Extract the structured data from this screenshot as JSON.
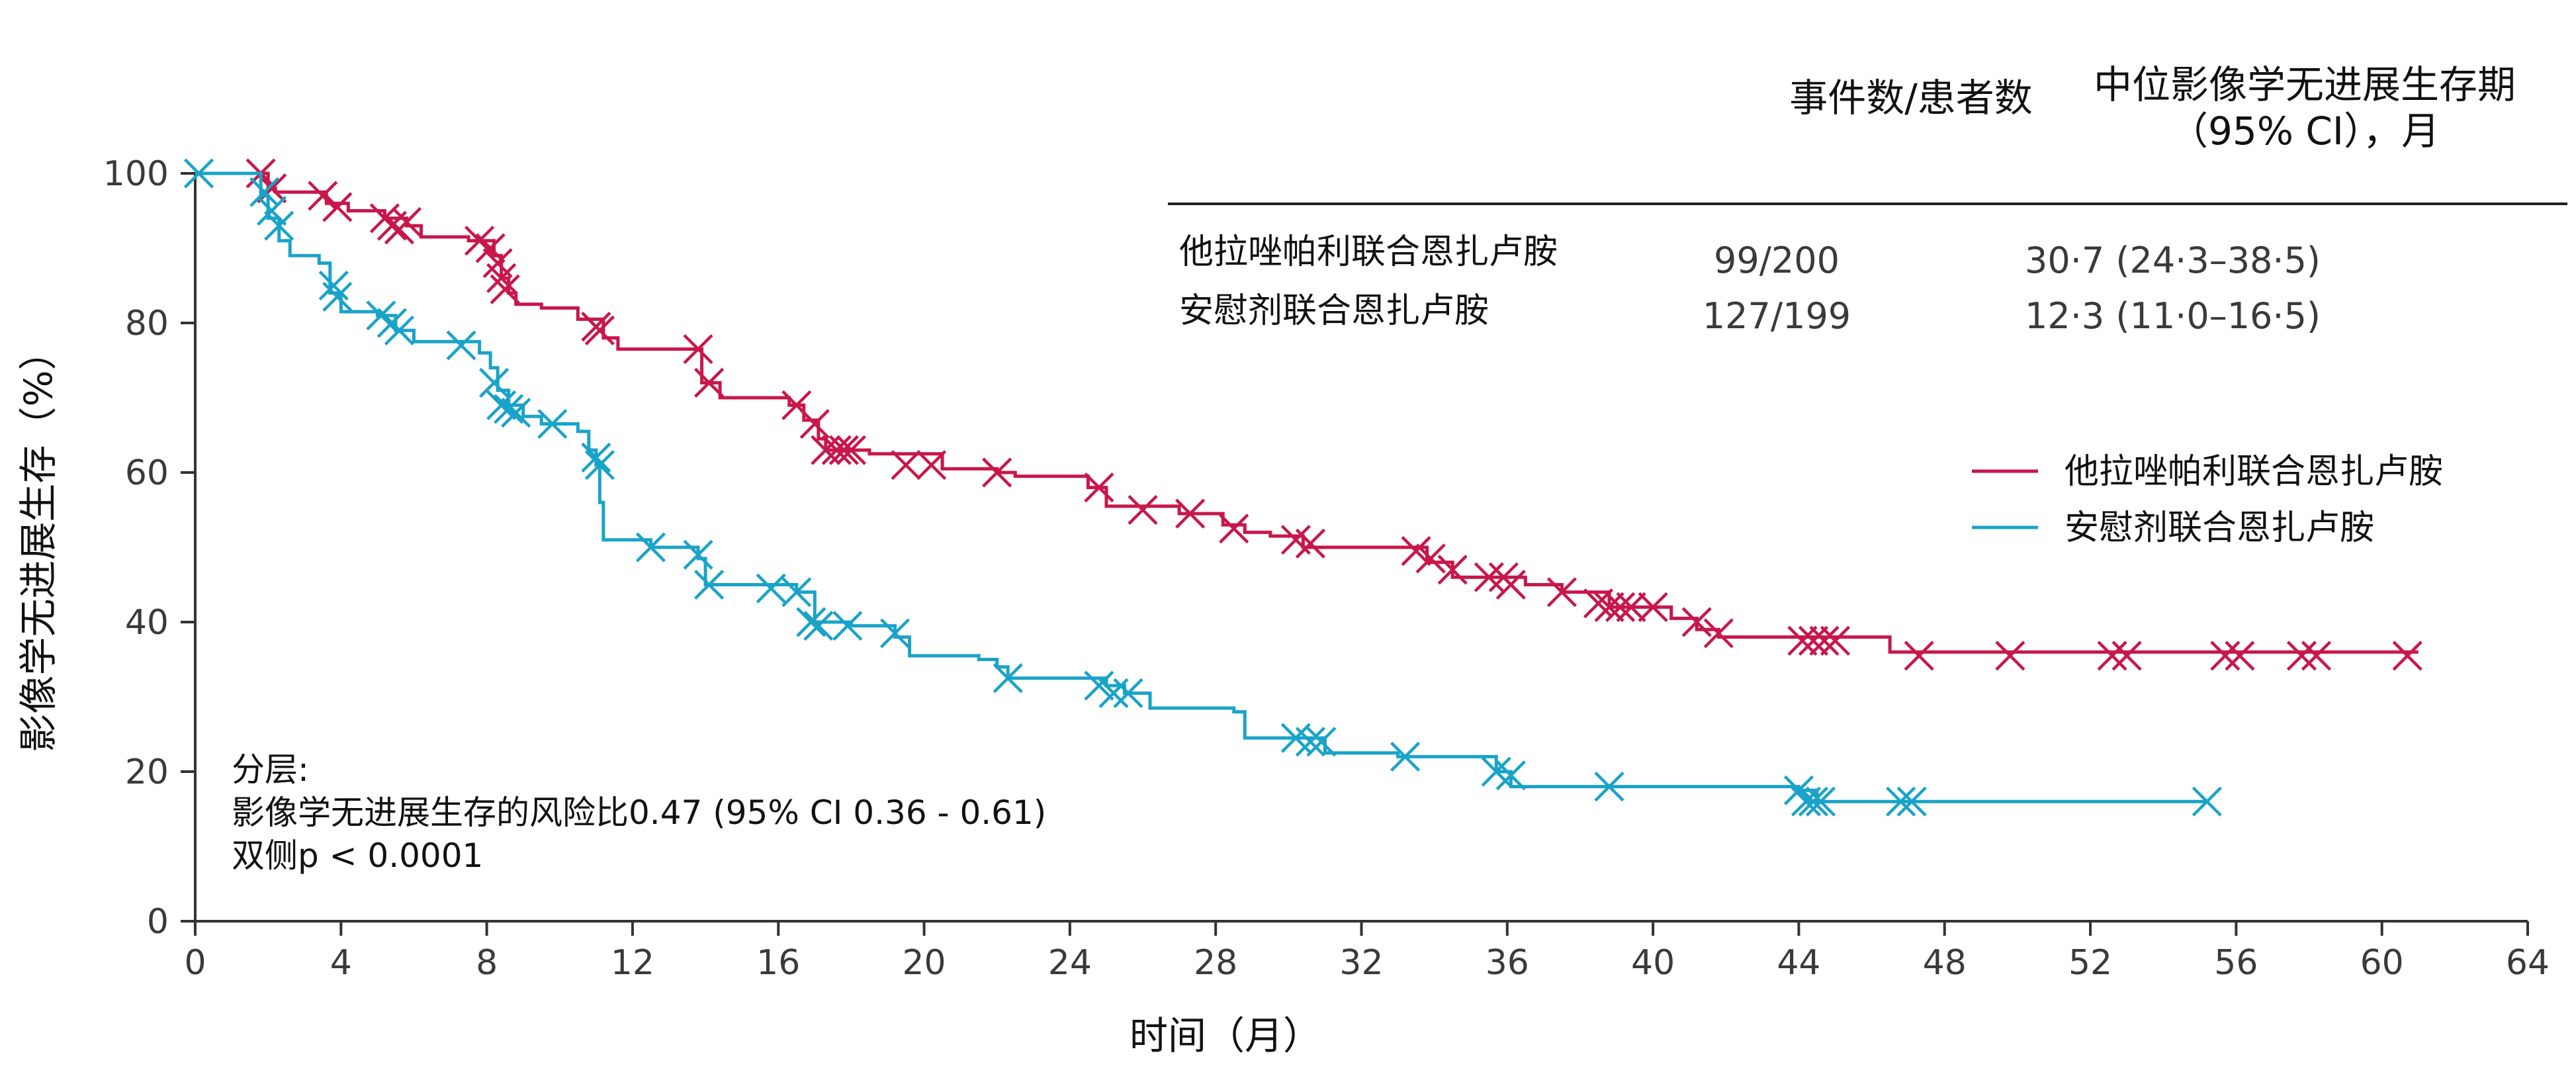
{
  "chart_data": {
    "type": "line",
    "subtype": "kaplan-meier step curves with censor marks",
    "xlabel": "时间（月）",
    "ylabel": "影像学无进展生存（%）",
    "xlim": [
      0,
      64
    ],
    "ylim": [
      0,
      100
    ],
    "x_ticks": [
      "0",
      "4",
      "8",
      "12",
      "16",
      "20",
      "24",
      "28",
      "32",
      "36",
      "40",
      "44",
      "48",
      "52",
      "56",
      "60",
      "64"
    ],
    "y_ticks": [
      "0",
      "20",
      "40",
      "60",
      "80",
      "100"
    ],
    "grid": false,
    "legend_position": "right",
    "table": {
      "header_col1": "事件数/患者数",
      "header_col2_line1": "中位影像学无进展生存期",
      "header_col2_line2": "（95% CI），月",
      "rows": [
        {
          "name": "他拉唑帕利联合恩扎卢胺",
          "events": "99/200",
          "median": "30·7 (24·3–38·5)"
        },
        {
          "name": "安慰剂联合恩扎卢胺",
          "events": "127/199",
          "median": "12·3 (11·0–16·5)"
        }
      ]
    },
    "annotation": {
      "line1": "分层:",
      "line2": "影像学无进展生存的风险比0.47   (95% CI 0.36 - 0.61)",
      "line3": "双侧p < 0.0001"
    },
    "series": [
      {
        "name": "他拉唑帕利联合恩扎卢胺",
        "color": "#c8174a",
        "steps": [
          [
            0,
            100
          ],
          [
            1.6,
            100
          ],
          [
            2,
            98
          ],
          [
            2.2,
            97.5
          ],
          [
            3.6,
            96
          ],
          [
            4.2,
            95
          ],
          [
            5.2,
            94
          ],
          [
            5.8,
            93
          ],
          [
            6.2,
            91.5
          ],
          [
            7.5,
            91
          ],
          [
            8.2,
            89
          ],
          [
            8.4,
            86
          ],
          [
            8.6,
            84
          ],
          [
            8.8,
            82.5
          ],
          [
            9.5,
            82
          ],
          [
            10.5,
            80.5
          ],
          [
            11.2,
            78
          ],
          [
            11.6,
            76.5
          ],
          [
            13.5,
            76.5
          ],
          [
            13.9,
            72
          ],
          [
            14.4,
            70
          ],
          [
            16.3,
            69
          ],
          [
            16.7,
            67
          ],
          [
            17.1,
            64.5
          ],
          [
            17.3,
            63
          ],
          [
            18.5,
            62.5
          ],
          [
            20.5,
            60.5
          ],
          [
            22,
            60
          ],
          [
            22.5,
            59.5
          ],
          [
            24.5,
            58
          ],
          [
            25,
            55.5
          ],
          [
            27,
            54.5
          ],
          [
            28.2,
            53
          ],
          [
            28.8,
            52
          ],
          [
            29.5,
            51.5
          ],
          [
            30.4,
            50
          ],
          [
            33.8,
            48
          ],
          [
            34.5,
            46
          ],
          [
            35.5,
            46
          ],
          [
            36.5,
            45
          ],
          [
            37.5,
            44
          ],
          [
            38.8,
            42
          ],
          [
            40.5,
            40.5
          ],
          [
            41.2,
            39
          ],
          [
            41.8,
            38
          ],
          [
            46.5,
            36
          ],
          [
            61,
            36
          ]
        ],
        "censors": [
          [
            1.8,
            100
          ],
          [
            2.1,
            98
          ],
          [
            3.5,
            97
          ],
          [
            3.9,
            95.5
          ],
          [
            5.2,
            94
          ],
          [
            5.4,
            93
          ],
          [
            5.6,
            92.5
          ],
          [
            5.8,
            93.5
          ],
          [
            7.8,
            91
          ],
          [
            8.1,
            90
          ],
          [
            8.3,
            88
          ],
          [
            8.4,
            86
          ],
          [
            8.5,
            84.5
          ],
          [
            11,
            79.5
          ],
          [
            11.1,
            79
          ],
          [
            13.8,
            76.5
          ],
          [
            14.1,
            72
          ],
          [
            16.5,
            69
          ],
          [
            17,
            66.5
          ],
          [
            17.3,
            63
          ],
          [
            17.6,
            63
          ],
          [
            17.8,
            63
          ],
          [
            18,
            63
          ],
          [
            19.5,
            61
          ],
          [
            20.2,
            61
          ],
          [
            22,
            60
          ],
          [
            24.8,
            58
          ],
          [
            26,
            55
          ],
          [
            27.3,
            54.5
          ],
          [
            28.5,
            52.5
          ],
          [
            30.2,
            51
          ],
          [
            30.6,
            50.5
          ],
          [
            33.5,
            49.5
          ],
          [
            33.9,
            48.5
          ],
          [
            34.5,
            47
          ],
          [
            35.5,
            46
          ],
          [
            35.9,
            46
          ],
          [
            36.1,
            45
          ],
          [
            37.5,
            44
          ],
          [
            38.5,
            42.5
          ],
          [
            38.8,
            42
          ],
          [
            39.1,
            42
          ],
          [
            39.4,
            42
          ],
          [
            40,
            42
          ],
          [
            41.2,
            40
          ],
          [
            41.8,
            38.5
          ],
          [
            44.1,
            37.5
          ],
          [
            44.4,
            37.5
          ],
          [
            44.7,
            37.5
          ],
          [
            45,
            37.5
          ],
          [
            47.3,
            35.5
          ],
          [
            49.8,
            35.5
          ],
          [
            52.6,
            35.5
          ],
          [
            53,
            35.5
          ],
          [
            55.7,
            35.5
          ],
          [
            56.1,
            35.5
          ],
          [
            57.8,
            35.5
          ],
          [
            58.2,
            35.5
          ],
          [
            60.7,
            35.5
          ]
        ]
      },
      {
        "name": "安慰剂联合恩扎卢胺",
        "color": "#1aa3c8",
        "steps": [
          [
            0,
            100
          ],
          [
            1.6,
            100
          ],
          [
            1.8,
            97
          ],
          [
            2,
            94
          ],
          [
            2.3,
            91
          ],
          [
            2.6,
            89
          ],
          [
            3.4,
            88
          ],
          [
            3.7,
            84
          ],
          [
            4,
            81.5
          ],
          [
            5,
            81
          ],
          [
            5.5,
            79
          ],
          [
            6,
            77.5
          ],
          [
            7.5,
            77.5
          ],
          [
            7.8,
            76
          ],
          [
            8.1,
            74
          ],
          [
            8.3,
            71
          ],
          [
            8.6,
            69
          ],
          [
            9,
            67.5
          ],
          [
            9.5,
            66.5
          ],
          [
            10.5,
            65.5
          ],
          [
            10.8,
            63
          ],
          [
            11,
            61
          ],
          [
            11.1,
            56
          ],
          [
            11.2,
            51
          ],
          [
            12.5,
            50
          ],
          [
            13.8,
            48.5
          ],
          [
            14,
            45
          ],
          [
            16.5,
            44
          ],
          [
            17,
            40
          ],
          [
            18,
            39.5
          ],
          [
            19.2,
            38
          ],
          [
            19.6,
            35.5
          ],
          [
            21.5,
            35
          ],
          [
            22,
            34
          ],
          [
            22.3,
            32.5
          ],
          [
            25,
            31.5
          ],
          [
            25.5,
            30.5
          ],
          [
            26.2,
            28.5
          ],
          [
            28.5,
            28
          ],
          [
            28.8,
            24.5
          ],
          [
            30.2,
            24.5
          ],
          [
            31,
            22.5
          ],
          [
            33,
            22
          ],
          [
            35.7,
            20
          ],
          [
            36.1,
            18
          ],
          [
            44,
            17.5
          ],
          [
            44.5,
            16
          ],
          [
            55.2,
            16
          ]
        ],
        "censors": [
          [
            0.1,
            100
          ],
          [
            1.9,
            97.5
          ],
          [
            2.1,
            95
          ],
          [
            2.3,
            93
          ],
          [
            3.8,
            85
          ],
          [
            3.9,
            83.5
          ],
          [
            5.1,
            81
          ],
          [
            5.4,
            80
          ],
          [
            5.6,
            79
          ],
          [
            7.3,
            77
          ],
          [
            8.2,
            72
          ],
          [
            8.4,
            69
          ],
          [
            8.6,
            68.5
          ],
          [
            8.8,
            68
          ],
          [
            9.8,
            66.5
          ],
          [
            11,
            62
          ],
          [
            11.1,
            61
          ],
          [
            12.5,
            50
          ],
          [
            13.8,
            49
          ],
          [
            14.1,
            45
          ],
          [
            15.8,
            44.5
          ],
          [
            16.5,
            44
          ],
          [
            16.9,
            40
          ],
          [
            17.1,
            39.5
          ],
          [
            17.9,
            39.5
          ],
          [
            19.2,
            38.5
          ],
          [
            22.3,
            32.5
          ],
          [
            24.8,
            31.5
          ],
          [
            25.2,
            30.5
          ],
          [
            25.6,
            30.5
          ],
          [
            30.2,
            24.5
          ],
          [
            30.6,
            24
          ],
          [
            30.9,
            24
          ],
          [
            33.2,
            22
          ],
          [
            35.7,
            20
          ],
          [
            36.1,
            19.5
          ],
          [
            38.8,
            18
          ],
          [
            44,
            17.5
          ],
          [
            44.2,
            16
          ],
          [
            44.4,
            16
          ],
          [
            44.6,
            16
          ],
          [
            46.8,
            16
          ],
          [
            47.1,
            16
          ],
          [
            55.2,
            16
          ]
        ]
      }
    ]
  }
}
